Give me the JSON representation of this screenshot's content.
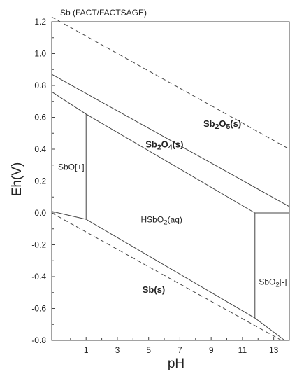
{
  "chart_data": {
    "type": "line",
    "title": "Sb (FACT/FACTSAGE)",
    "xlabel": "pH",
    "ylabel": "Eh(V)",
    "xlim": [
      -1.2,
      14
    ],
    "ylim": [
      -0.8,
      1.2
    ],
    "x_ticks": [
      1,
      3,
      5,
      7,
      9,
      11,
      13
    ],
    "x_tick_labels": [
      "1",
      "3",
      "5",
      "7",
      "9",
      "11",
      "13"
    ],
    "y_ticks": [
      -0.8,
      -0.6,
      -0.4,
      -0.2,
      0.0,
      0.2,
      0.4,
      0.6,
      0.8,
      1.0,
      1.2
    ],
    "y_tick_labels": [
      "-0.8",
      "-0.6",
      "-0.4",
      "-0.2",
      "0.0",
      "0.2",
      "0.4",
      "0.6",
      "0.8",
      "1.0",
      "1.2"
    ],
    "boundaries": [
      {
        "id": "sb2o5-sb2o4",
        "points": [
          [
            -1.2,
            0.87
          ],
          [
            14,
            0.04
          ]
        ]
      },
      {
        "id": "sbo-sb2o4",
        "points": [
          [
            -1.2,
            0.76
          ],
          [
            1.0,
            0.62
          ]
        ]
      },
      {
        "id": "sb2o4-hsbo2",
        "points": [
          [
            1.0,
            0.62
          ],
          [
            11.8,
            0.0
          ]
        ]
      },
      {
        "id": "sb2o4-sbo2",
        "points": [
          [
            11.8,
            0.0
          ],
          [
            14,
            0.0
          ]
        ]
      },
      {
        "id": "sbo-hsbo2",
        "points": [
          [
            1.0,
            0.62
          ],
          [
            1.0,
            -0.04
          ]
        ]
      },
      {
        "id": "hsbo2-sbo2",
        "points": [
          [
            11.8,
            0.0
          ],
          [
            11.8,
            -0.66
          ]
        ]
      },
      {
        "id": "sb-aqueous",
        "points": [
          [
            -1.2,
            0.01
          ],
          [
            1.0,
            -0.04
          ],
          [
            11.8,
            -0.66
          ],
          [
            13.7,
            -0.8
          ]
        ]
      }
    ],
    "water_lines": [
      {
        "id": "o2-water",
        "points": [
          [
            -1.2,
            1.23
          ],
          [
            14,
            0.4
          ]
        ]
      },
      {
        "id": "h2-water",
        "points": [
          [
            -1.2,
            0.0
          ],
          [
            13.5,
            -0.8
          ]
        ]
      }
    ],
    "regions": [
      {
        "label_parts": [
          [
            "Sb",
            ""
          ],
          [
            "2",
            "sub"
          ],
          [
            "O",
            ""
          ],
          [
            "5",
            "sub"
          ],
          [
            "(s)",
            ""
          ]
        ],
        "x": 8.5,
        "y": 0.54,
        "bold": true
      },
      {
        "label_parts": [
          [
            "Sb",
            ""
          ],
          [
            "2",
            "sub"
          ],
          [
            "O",
            ""
          ],
          [
            "4",
            "sub"
          ],
          [
            "(s)",
            ""
          ]
        ],
        "x": 4.8,
        "y": 0.41,
        "bold": true
      },
      {
        "label_parts": [
          [
            "SbO[+]",
            ""
          ]
        ],
        "x": -0.8,
        "y": 0.27,
        "bold": false
      },
      {
        "label_parts": [
          [
            "HSbO",
            ""
          ],
          [
            "2",
            "sub"
          ],
          [
            "(aq)",
            ""
          ]
        ],
        "x": 4.5,
        "y": -0.06,
        "bold": false
      },
      {
        "label_parts": [
          [
            "Sb(s)",
            ""
          ]
        ],
        "x": 4.6,
        "y": -0.5,
        "bold": true
      },
      {
        "label_parts": [
          [
            "SbO",
            ""
          ],
          [
            "2",
            "sub"
          ],
          [
            "[-]",
            ""
          ]
        ],
        "x": 12.05,
        "y": -0.45,
        "bold": false
      }
    ]
  }
}
